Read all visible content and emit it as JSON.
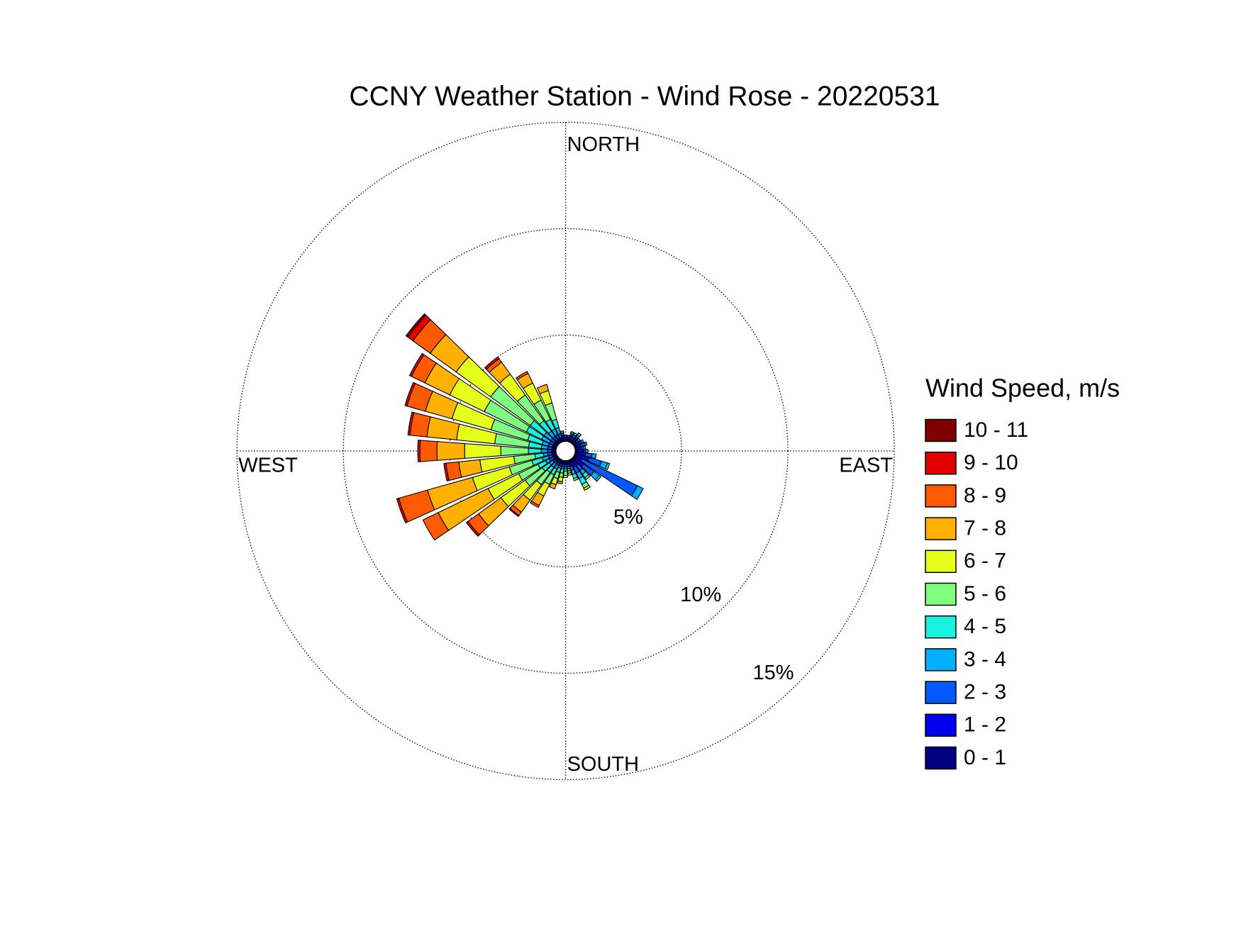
{
  "chart_data": {
    "type": "windrose",
    "title": "CCNY Weather Station - Wind Rose - 20220531",
    "legend_title": "Wind Speed, m/s",
    "direction_labels": [
      "NORTH",
      "EAST",
      "SOUTH",
      "WEST"
    ],
    "x": [
      0,
      10,
      20,
      30,
      40,
      50,
      60,
      70,
      80,
      90,
      100,
      110,
      120,
      130,
      140,
      150,
      160,
      170,
      180,
      190,
      200,
      210,
      220,
      230,
      240,
      250,
      260,
      270,
      280,
      290,
      300,
      310,
      320,
      330,
      340,
      350
    ],
    "rlim": [
      0,
      15
    ],
    "rticks": [
      {
        "value": 5,
        "label": "5%"
      },
      {
        "value": 10,
        "label": "10%"
      },
      {
        "value": 15,
        "label": "15%"
      }
    ],
    "grid": true,
    "series": [
      {
        "name": "0 - 1",
        "color": "#000080",
        "values": [
          0.1,
          0.1,
          0.1,
          0.1,
          0.1,
          0.1,
          0.1,
          0.1,
          0.1,
          0.1,
          0.1,
          0.1,
          0.1,
          0.1,
          0.1,
          0.1,
          0.1,
          0.1,
          0.1,
          0.1,
          0.1,
          0.1,
          0.1,
          0.1,
          0.1,
          0.1,
          0.1,
          0.1,
          0.1,
          0.1,
          0.1,
          0.1,
          0.1,
          0.1,
          0.1,
          0.1
        ]
      },
      {
        "name": "1 - 2",
        "color": "#0000ee",
        "values": [
          0.1,
          0.1,
          0.2,
          0.1,
          0.2,
          0.1,
          0.2,
          0.2,
          0.2,
          0.3,
          0.4,
          0.6,
          0.3,
          0.5,
          0.3,
          0.3,
          0.2,
          0.1,
          0.1,
          0.1,
          0.1,
          0.1,
          0.1,
          0.1,
          0.1,
          0.1,
          0.1,
          0.1,
          0.1,
          0.1,
          0.1,
          0.1,
          0.1,
          0.1,
          0.1,
          0.2
        ]
      },
      {
        "name": "2 - 3",
        "color": "#005aff",
        "values": [
          0.1,
          0.1,
          0.1,
          0.1,
          0.1,
          0.1,
          0.1,
          0.2,
          0.1,
          0.1,
          0.3,
          0.6,
          2.9,
          0.6,
          0.3,
          0.3,
          0.2,
          0.1,
          0.1,
          0.1,
          0.1,
          0.1,
          0.1,
          0.1,
          0.2,
          0.2,
          0.2,
          0.2,
          0.2,
          0.2,
          0.2,
          0.2,
          0.2,
          0.2,
          0.2,
          0.1
        ]
      },
      {
        "name": "3 - 4",
        "color": "#00b0ff",
        "values": [
          0,
          0,
          0.1,
          0.1,
          0.1,
          0.1,
          0.1,
          0.1,
          0.1,
          0.1,
          0.2,
          0.3,
          0.3,
          0.3,
          0.2,
          0.3,
          0.2,
          0.1,
          0.1,
          0.1,
          0.1,
          0.2,
          0.2,
          0.2,
          0.2,
          0.3,
          0.2,
          0.3,
          0.3,
          0.3,
          0.4,
          0.4,
          0.3,
          0.3,
          0.3,
          0.1
        ]
      },
      {
        "name": "4 - 5",
        "color": "#1af0e0",
        "values": [
          0,
          0,
          0,
          0.1,
          0.1,
          0,
          0,
          0,
          0,
          0,
          0,
          0.1,
          0,
          0.1,
          0.2,
          0.3,
          0.2,
          0.1,
          0.1,
          0.2,
          0.2,
          0.3,
          0.3,
          0.4,
          0.4,
          0.5,
          0.4,
          0.6,
          0.6,
          0.7,
          0.8,
          0.8,
          0.6,
          0.5,
          0.4,
          0
        ]
      },
      {
        "name": "5 - 6",
        "color": "#80ff80",
        "values": [
          0,
          0,
          0,
          0,
          0,
          0,
          0,
          0,
          0,
          0,
          0,
          0,
          0,
          0,
          0.1,
          0.2,
          0.1,
          0.1,
          0.2,
          0.2,
          0.3,
          0.5,
          0.7,
          1.0,
          1.0,
          1.1,
          1.0,
          1.3,
          1.6,
          1.8,
          2.2,
          2.3,
          1.5,
          1.0,
          0.8,
          0
        ]
      },
      {
        "name": "6 - 7",
        "color": "#e6ff1a",
        "values": [
          0,
          0,
          0,
          0,
          0,
          0,
          0,
          0,
          0,
          0,
          0,
          0,
          0,
          0,
          0,
          0.1,
          0,
          0.1,
          0.1,
          0.2,
          0.3,
          0.6,
          0.9,
          1.4,
          1.6,
          1.8,
          1.6,
          1.7,
          1.8,
          1.9,
          1.8,
          2.0,
          1.2,
          0.9,
          0.6,
          0
        ]
      },
      {
        "name": "7 - 8",
        "color": "#ffb000",
        "values": [
          0,
          0,
          0,
          0,
          0,
          0,
          0,
          0,
          0,
          0,
          0,
          0,
          0,
          0,
          0,
          0,
          0,
          0,
          0,
          0.1,
          0.2,
          0.5,
          0.7,
          1.3,
          2.6,
          2.2,
          1.0,
          1.3,
          1.4,
          1.3,
          1.3,
          1.5,
          0.7,
          0.5,
          0.3,
          0
        ]
      },
      {
        "name": "8 - 9",
        "color": "#ff5a00",
        "values": [
          0,
          0,
          0,
          0,
          0,
          0,
          0,
          0,
          0,
          0,
          0,
          0,
          0,
          0,
          0,
          0,
          0,
          0,
          0,
          0,
          0,
          0.1,
          0.2,
          0.6,
          0.8,
          1.4,
          0.6,
          0.8,
          0.8,
          0.9,
          0.7,
          1.0,
          0.2,
          0.1,
          0,
          0
        ]
      },
      {
        "name": "9 - 10",
        "color": "#e50000",
        "values": [
          0,
          0,
          0,
          0,
          0,
          0,
          0,
          0,
          0,
          0,
          0,
          0,
          0,
          0,
          0,
          0,
          0,
          0,
          0,
          0,
          0,
          0,
          0.05,
          0.1,
          0,
          0.1,
          0.1,
          0.1,
          0.1,
          0.1,
          0.1,
          0.3,
          0.1,
          0,
          0,
          0
        ]
      },
      {
        "name": "10 - 11",
        "color": "#7f0000",
        "values": [
          0,
          0,
          0,
          0,
          0,
          0,
          0,
          0,
          0,
          0,
          0,
          0,
          0,
          0,
          0,
          0,
          0,
          0,
          0,
          0,
          0,
          0,
          0,
          0,
          0,
          0,
          0,
          0,
          0,
          0,
          0,
          0.1,
          0,
          0,
          0,
          0
        ]
      }
    ]
  }
}
